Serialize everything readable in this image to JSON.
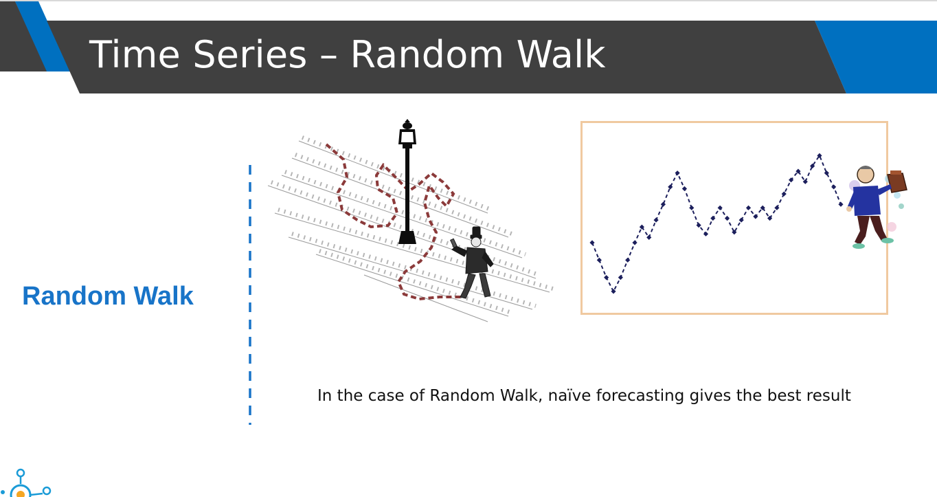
{
  "slide": {
    "title": "Time Series – Random Walk",
    "side_heading": "Random Walk",
    "caption": "In the case of Random Walk, naïve forecasting gives the best result"
  },
  "colors": {
    "header_dark": "#404040",
    "header_accent": "#0070c0",
    "heading_blue": "#1874c8",
    "path_brown": "#8b3a3a",
    "series_navy": "#1c1f5c",
    "frame_peach": "#f0c9a0"
  },
  "illustrations": {
    "left_icon": "drunkard-lamppost-icon",
    "right_icon": "drunk-walker-icon",
    "logo_icon": "lightbulb-network-logo-icon"
  },
  "chart_data": {
    "type": "line",
    "title": "",
    "xlabel": "",
    "ylabel": "",
    "grid": false,
    "marker": "diamond",
    "line_style": "dashed",
    "x": [
      0,
      1,
      2,
      3,
      4,
      5,
      6,
      7,
      8,
      9,
      10,
      11,
      12,
      13,
      14,
      15,
      16,
      17,
      18,
      19,
      20,
      21,
      22,
      23,
      24,
      25,
      26,
      27,
      28,
      29,
      30,
      31,
      32,
      33,
      34,
      35
    ],
    "values": [
      3.0,
      2.0,
      1.0,
      0.2,
      1.0,
      2.0,
      3.0,
      3.9,
      3.3,
      4.3,
      5.2,
      6.2,
      7.0,
      6.1,
      5.0,
      4.0,
      3.5,
      4.4,
      5.0,
      4.4,
      3.6,
      4.3,
      5.0,
      4.5,
      5.0,
      4.4,
      5.0,
      5.8,
      6.6,
      7.1,
      6.5,
      7.4,
      8.0,
      7.0,
      6.2,
      5.2
    ],
    "ylim": [
      0,
      9
    ]
  }
}
